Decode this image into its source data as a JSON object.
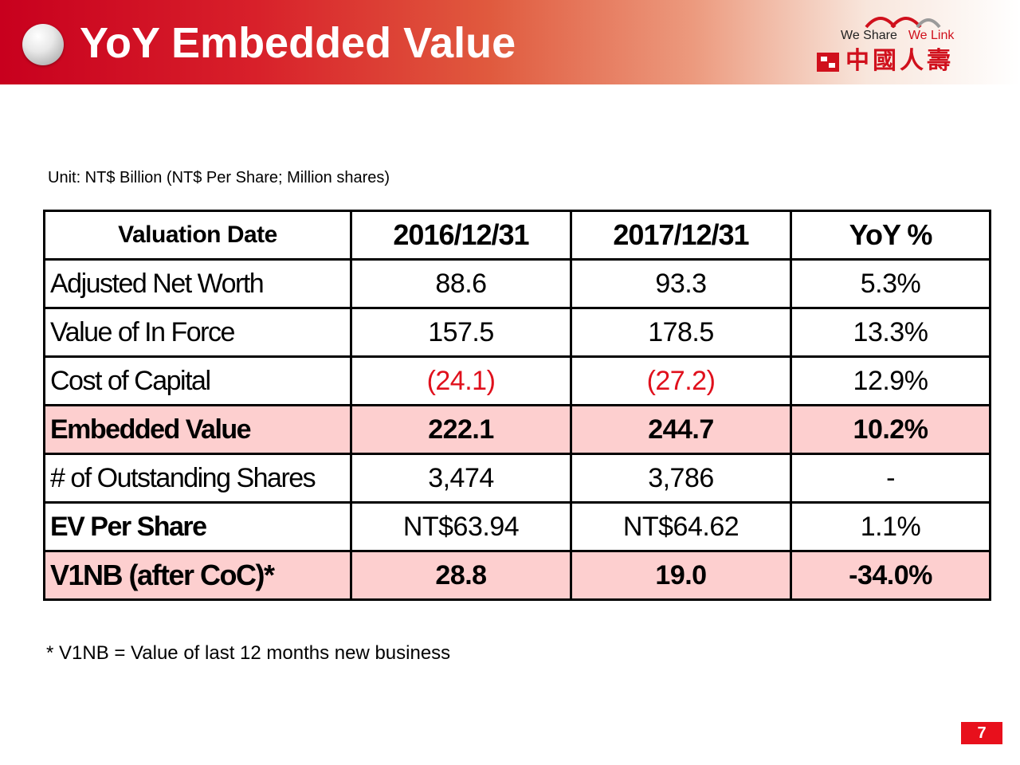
{
  "header": {
    "title": "YoY Embedded Value",
    "logo": {
      "slogan_left": "We Share",
      "slogan_right": "We Link",
      "brand_name": "中國人壽",
      "icon": "china-life-logo-icon"
    },
    "bullet_icon": "bullet-ball-icon"
  },
  "unit_note": "Unit: NT$ Billion (NT$ Per Share; Million shares)",
  "table": {
    "header": [
      "Valuation Date",
      "2016/12/31",
      "2017/12/31",
      "YoY %"
    ],
    "rows": [
      [
        "Adjusted Net Worth",
        "88.6",
        "93.3",
        "5.3%"
      ],
      [
        "Value of In Force",
        "157.5",
        "178.5",
        "13.3%"
      ],
      [
        "Cost of Capital",
        "(24.1)",
        "(27.2)",
        "12.9%"
      ],
      [
        "Embedded Value",
        "222.1",
        "244.7",
        "10.2%"
      ],
      [
        "# of Outstanding Shares",
        "3,474",
        "3,786",
        "-"
      ],
      [
        "EV Per Share",
        "NT$63.94",
        "NT$64.62",
        "1.1%"
      ],
      [
        "V1NB (after CoC)*",
        "28.8",
        "19.0",
        "-34.0%"
      ]
    ]
  },
  "footnote": "* V1NB = Value of last 12 months new business",
  "page_number": "7",
  "colors": {
    "brand_red": "#d0101c",
    "highlight_pink": "#fdcfcf",
    "negative_red": "#e0101c"
  }
}
